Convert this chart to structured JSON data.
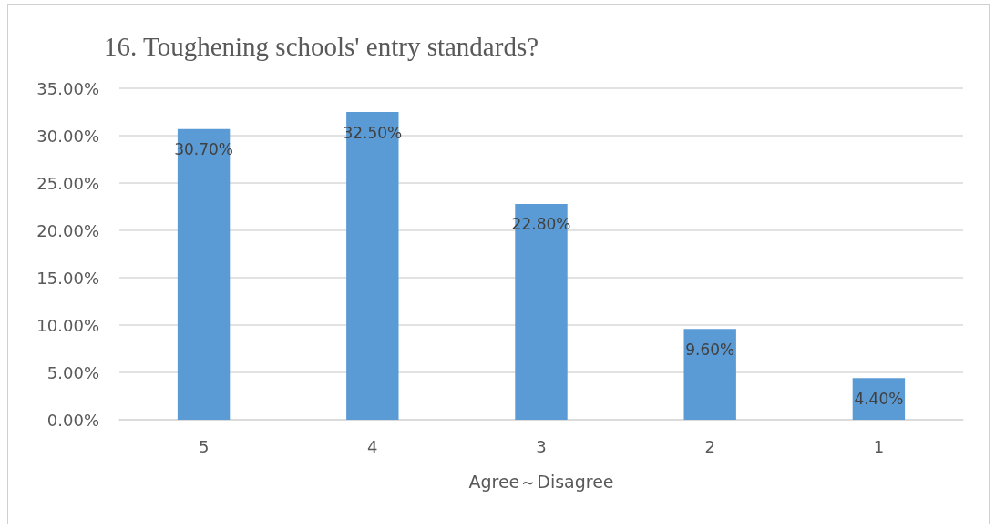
{
  "chart_data": {
    "type": "bar",
    "title": "16. Toughening schools' entry standards?",
    "xlabel": "Agree～Disagree",
    "categories": [
      "5",
      "4",
      "3",
      "2",
      "1"
    ],
    "values": [
      30.7,
      32.5,
      22.8,
      9.6,
      4.4
    ],
    "value_labels": [
      "30.70%",
      "32.50%",
      "22.80%",
      "9.60%",
      "4.40%"
    ],
    "color": "#5b9bd5",
    "ylim": [
      0,
      35
    ],
    "yticks": [
      {
        "value": 0,
        "label": "0.00%"
      },
      {
        "value": 5,
        "label": "5.00%"
      },
      {
        "value": 10,
        "label": "10.00%"
      },
      {
        "value": 15,
        "label": "15.00%"
      },
      {
        "value": 20,
        "label": "20.00%"
      },
      {
        "value": 25,
        "label": "25.00%"
      },
      {
        "value": 30,
        "label": "30.00%"
      },
      {
        "value": 35,
        "label": "35.00%"
      }
    ],
    "grid": "y"
  }
}
